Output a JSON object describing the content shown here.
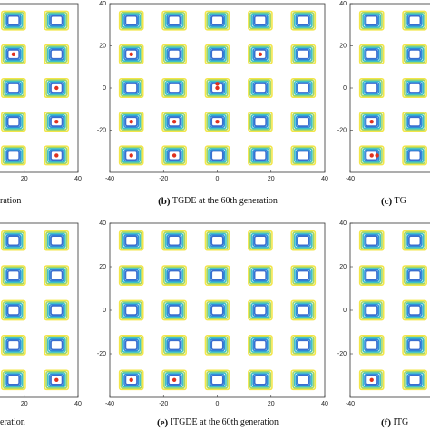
{
  "chart_data": [
    {
      "type": "scatter",
      "caption": "ration",
      "xlim": [
        -40,
        40
      ],
      "ylim": [
        -40,
        40
      ],
      "xticks": [
        20,
        40
      ],
      "yticks": [],
      "contour_centers": [
        -32,
        -16,
        0,
        16,
        32
      ],
      "point_color": "#e0301e",
      "points": {
        "x": [
          16,
          32,
          32,
          32
        ],
        "y": [
          16,
          0,
          -16,
          -32
        ]
      }
    },
    {
      "type": "scatter",
      "label": "(b)",
      "caption": "TGDE at the 60th generation",
      "xlim": [
        -40,
        40
      ],
      "ylim": [
        -40,
        40
      ],
      "xticks": [
        -40,
        -20,
        0,
        20,
        40
      ],
      "yticks": [
        40,
        20,
        0,
        -20
      ],
      "contour_centers": [
        -32,
        -16,
        0,
        16,
        32
      ],
      "point_color": "#e0301e",
      "points": {
        "x": [
          -32,
          16,
          0,
          0,
          -32,
          -16,
          0,
          -32,
          -16
        ],
        "y": [
          16,
          16,
          0,
          2,
          -16,
          -16,
          -16,
          -32,
          -32
        ]
      }
    },
    {
      "type": "scatter",
      "label": "(c)",
      "caption": "TG",
      "xlim": [
        -40,
        40
      ],
      "ylim": [
        -40,
        40
      ],
      "xticks": [
        -40
      ],
      "yticks": [
        40,
        20,
        0,
        -20
      ],
      "contour_centers": [
        -32,
        -16,
        0,
        16,
        32
      ],
      "point_color": "#e0301e",
      "points": {
        "x": [
          -32,
          -32,
          -30
        ],
        "y": [
          -16,
          -32,
          -32
        ]
      }
    },
    {
      "type": "scatter",
      "caption": "eration",
      "xlim": [
        -40,
        40
      ],
      "ylim": [
        -40,
        40
      ],
      "xticks": [
        20,
        40
      ],
      "yticks": [],
      "contour_centers": [
        -32,
        -16,
        0,
        16,
        32
      ],
      "point_color": "#e0301e",
      "points": {
        "x": [
          32
        ],
        "y": [
          -32
        ]
      }
    },
    {
      "type": "scatter",
      "label": "(e)",
      "caption": "ITGDE at the 60th generation",
      "xlim": [
        -40,
        40
      ],
      "ylim": [
        -40,
        40
      ],
      "xticks": [
        -40,
        -20,
        0,
        20,
        40
      ],
      "yticks": [
        40,
        20,
        0,
        -20
      ],
      "contour_centers": [
        -32,
        -16,
        0,
        16,
        32
      ],
      "point_color": "#e0301e",
      "points": {
        "x": [
          -32,
          -16
        ],
        "y": [
          -32,
          -32
        ]
      }
    },
    {
      "type": "scatter",
      "label": "(f)",
      "caption": "ITG",
      "xlim": [
        -40,
        40
      ],
      "ylim": [
        -40,
        40
      ],
      "xticks": [
        -40
      ],
      "yticks": [
        40,
        20,
        0,
        -20
      ],
      "contour_centers": [
        -32,
        -16,
        0,
        16,
        32
      ],
      "point_color": "#e0301e",
      "points": {
        "x": [
          -32
        ],
        "y": [
          -32
        ]
      }
    }
  ]
}
